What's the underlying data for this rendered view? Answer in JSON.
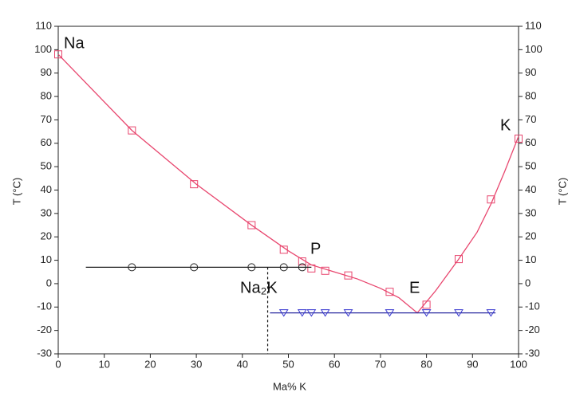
{
  "chart_data": {
    "type": "line",
    "xlabel": "Ma% K",
    "ylabel": "T (°C)",
    "y2label": "T (°C)",
    "xlim": [
      0,
      100
    ],
    "xticks": [
      0,
      10,
      20,
      30,
      40,
      50,
      60,
      70,
      80,
      90,
      100
    ],
    "ylim": [
      -30,
      110
    ],
    "yticks": [
      -30,
      -20,
      -10,
      0,
      10,
      20,
      30,
      40,
      50,
      60,
      70,
      80,
      90,
      100,
      110
    ],
    "y2lim": [
      -30,
      110
    ],
    "y2ticks": [
      -30,
      -20,
      -10,
      0,
      10,
      20,
      30,
      40,
      50,
      60,
      70,
      80,
      90,
      100,
      110
    ],
    "grid": false,
    "annotations": [
      "Na",
      "K",
      "P",
      "E",
      "Na₂K"
    ],
    "series": [
      {
        "style": "line",
        "color": "#e8466e",
        "x": [
          0,
          16,
          30,
          42,
          50,
          55,
          60,
          65,
          70,
          74,
          78,
          82,
          87,
          91,
          94,
          97,
          100
        ],
        "values": [
          98,
          65.5,
          42.5,
          25,
          14,
          8,
          5,
          2,
          -2,
          -6,
          -12.5,
          -3,
          10.5,
          22,
          34,
          48,
          63
        ]
      },
      {
        "style": "markers",
        "marker": "square",
        "color": "#e8466e",
        "x": [
          0,
          16,
          29.5,
          42,
          49,
          53,
          55,
          58,
          63,
          72,
          80,
          87,
          94,
          100
        ],
        "values": [
          98,
          65.5,
          42.5,
          25,
          14.5,
          9.5,
          6.5,
          5.5,
          3.5,
          -3.5,
          -9,
          10.5,
          36,
          62
        ]
      },
      {
        "style": "line",
        "color": "#222222",
        "x": [
          6,
          55
        ],
        "values": [
          7,
          7
        ]
      },
      {
        "style": "markers",
        "marker": "circle",
        "color": "#222222",
        "x": [
          16,
          29.5,
          42,
          49,
          53
        ],
        "values": [
          7,
          7,
          7,
          7,
          7
        ]
      },
      {
        "style": "line",
        "color": "#2a2aa0",
        "x": [
          46,
          95
        ],
        "values": [
          -12.5,
          -12.5
        ]
      },
      {
        "style": "markers",
        "marker": "triangle",
        "color": "#3a3ad0",
        "x": [
          49,
          53,
          55,
          58,
          63,
          72,
          80,
          87,
          94
        ],
        "values": [
          -12.5,
          -12.5,
          -12.5,
          -12.5,
          -12.5,
          -12.5,
          -12.5,
          -12.5,
          -12.5
        ]
      },
      {
        "style": "dashed",
        "color": "#111111",
        "x": [
          45.5,
          45.5
        ],
        "values": [
          7,
          -30
        ]
      }
    ]
  }
}
